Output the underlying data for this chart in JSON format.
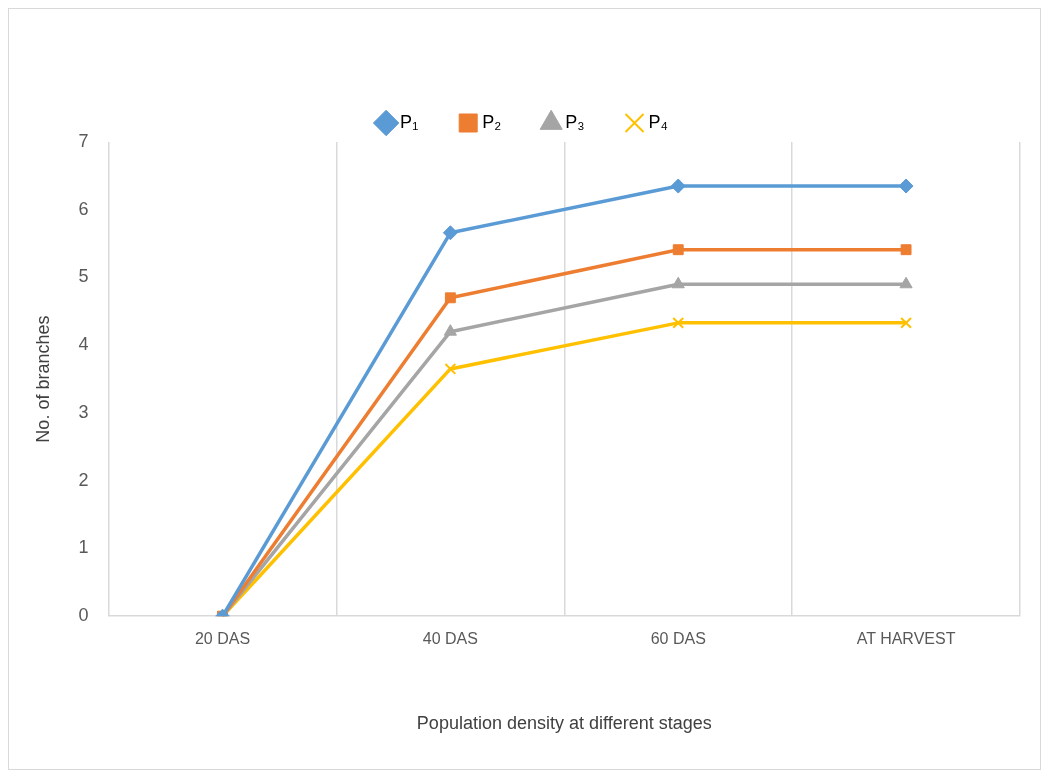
{
  "chart_data": {
    "type": "line",
    "xlabel": "Population density at different stages",
    "ylabel": "No. of branches",
    "categories": [
      "20 DAS",
      "40 DAS",
      "60 DAS",
      "AT HARVEST"
    ],
    "series": [
      {
        "name": "P₁",
        "color": "#5b9bd5",
        "marker": "diamond",
        "values": [
          0,
          5.66,
          6.35,
          6.35
        ]
      },
      {
        "name": "P₂",
        "color": "#ed7d31",
        "marker": "square",
        "values": [
          0,
          4.7,
          5.41,
          5.41
        ]
      },
      {
        "name": "P₃",
        "color": "#a5a5a5",
        "marker": "triangle",
        "values": [
          0,
          4.2,
          4.9,
          4.9
        ]
      },
      {
        "name": "P₄",
        "color": "#ffc000",
        "marker": "cross",
        "values": [
          0,
          3.65,
          4.33,
          4.33
        ]
      }
    ],
    "ylim": [
      0,
      7
    ],
    "yticks": [
      0,
      1,
      2,
      3,
      4,
      5,
      6,
      7
    ],
    "grid": "x",
    "legend": "top",
    "line_style": "solid"
  }
}
